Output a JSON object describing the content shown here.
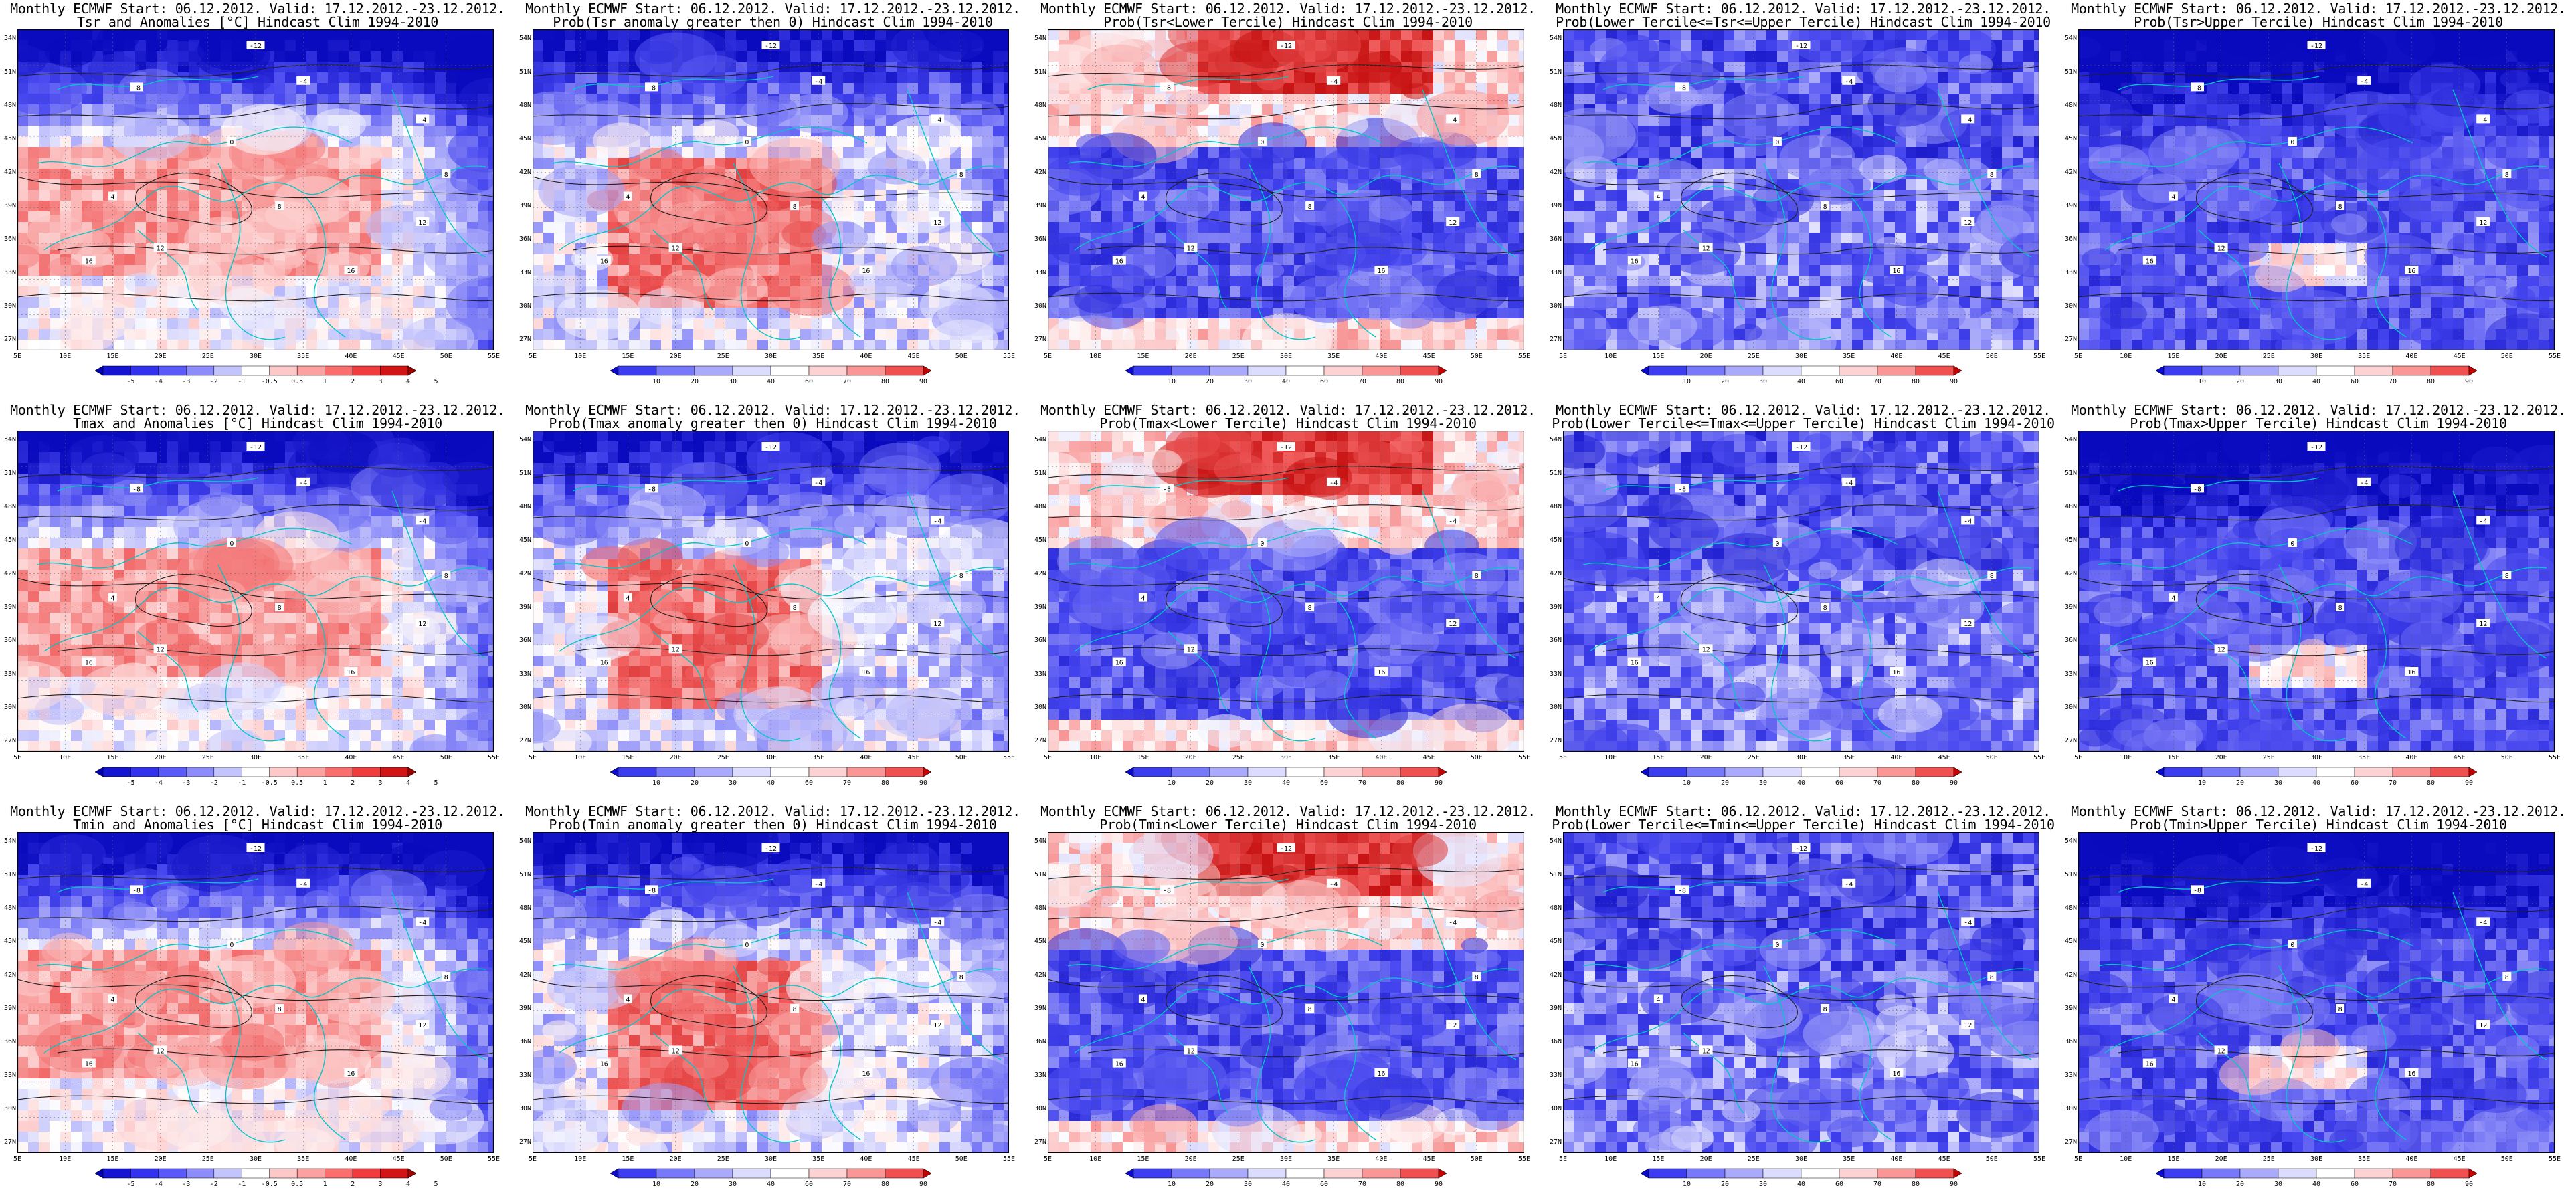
{
  "header_prefix": "Monthly ECMWF Start: 06.12.2012. Valid: 17.12.2012.-23.12.2012.",
  "y_ticks": [
    "54N",
    "51N",
    "48N",
    "45N",
    "42N",
    "39N",
    "36N",
    "33N",
    "30N",
    "27N"
  ],
  "x_ticks": [
    "5E",
    "10E",
    "15E",
    "20E",
    "25E",
    "30E",
    "35E",
    "40E",
    "45E",
    "50E",
    "55E"
  ],
  "colorbars": {
    "anomaly": {
      "labels": [
        "-5",
        "-4",
        "-3",
        "-2",
        "-1",
        "-0.5",
        "0.5",
        "1",
        "2",
        "3",
        "4",
        "5"
      ],
      "colors": [
        "#0000b4",
        "#1414d2",
        "#3232ee",
        "#5a5afa",
        "#8c8cfc",
        "#c4c4fd",
        "#ffffff",
        "#fdc8c8",
        "#fca0a0",
        "#fa6e6e",
        "#f03c3c",
        "#d21414",
        "#a00000"
      ]
    },
    "probability": {
      "labels": [
        "10",
        "20",
        "30",
        "40",
        "60",
        "70",
        "80",
        "90"
      ],
      "colors": [
        "#0a0ad2",
        "#3c3cf0",
        "#7878fa",
        "#aaaafc",
        "#dcdcfe",
        "#ffffff",
        "#fcd2d2",
        "#fa9696",
        "#f05050",
        "#c80000"
      ]
    }
  },
  "panels": [
    {
      "title": "Tsr and Anomalies [°C] Hindcast Clim 1994-2010",
      "cbar": "anomaly",
      "kind": "anom"
    },
    {
      "title": "Prob(Tsr anomaly greater then 0) Hindcast Clim 1994-2010",
      "cbar": "probability",
      "kind": "pos"
    },
    {
      "title": "Prob(Tsr<Lower Tercile) Hindcast Clim 1994-2010",
      "cbar": "probability",
      "kind": "low"
    },
    {
      "title": "Prob(Lower Tercile<=Tsr<=Upper Tercile) Hindcast Clim 1994-2010",
      "cbar": "probability",
      "kind": "mid"
    },
    {
      "title": "Prob(Tsr>Upper Tercile) Hindcast Clim 1994-2010",
      "cbar": "probability",
      "kind": "up"
    },
    {
      "title": "Tmax and Anomalies [°C] Hindcast Clim 1994-2010",
      "cbar": "anomaly",
      "kind": "anom"
    },
    {
      "title": "Prob(Tmax anomaly greater then 0) Hindcast Clim 1994-2010",
      "cbar": "probability",
      "kind": "pos"
    },
    {
      "title": "Prob(Tmax<Lower Tercile) Hindcast Clim 1994-2010",
      "cbar": "probability",
      "kind": "low"
    },
    {
      "title": "Prob(Lower Tercile<=Tmax<=Upper Tercile) Hindcast Clim 1994-2010",
      "cbar": "probability",
      "kind": "mid"
    },
    {
      "title": "Prob(Tmax>Upper Tercile) Hindcast Clim 1994-2010",
      "cbar": "probability",
      "kind": "up"
    },
    {
      "title": "Tmin and Anomalies [°C] Hindcast Clim 1994-2010",
      "cbar": "anomaly",
      "kind": "anom"
    },
    {
      "title": "Prob(Tmin anomaly greater then 0) Hindcast Clim 1994-2010",
      "cbar": "probability",
      "kind": "pos"
    },
    {
      "title": "Prob(Tmin<Lower Tercile) Hindcast Clim 1994-2010",
      "cbar": "probability",
      "kind": "low"
    },
    {
      "title": "Prob(Lower Tercile<=Tmin<=Upper Tercile) Hindcast Clim 1994-2010",
      "cbar": "probability",
      "kind": "mid"
    },
    {
      "title": "Prob(Tmin>Upper Tercile) Hindcast Clim 1994-2010",
      "cbar": "probability",
      "kind": "up"
    }
  ],
  "contour_labels": [
    "-12",
    "-8",
    "-4",
    "-4",
    "0",
    "4",
    "8",
    "12",
    "16",
    "16",
    "12",
    "8"
  ]
}
